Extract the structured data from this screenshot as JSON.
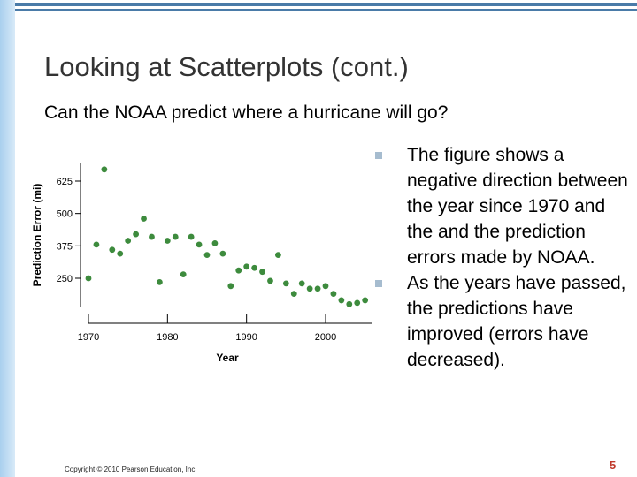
{
  "slide": {
    "title": "Looking at Scatterplots (cont.)",
    "subtitle": "Can the NOAA predict where a hurricane will go?",
    "bullets": [
      "The figure shows a negative direction between the year since 1970 and the and the prediction errors made by NOAA.",
      "As the years have passed, the predictions have improved (errors have decreased)."
    ],
    "copyright": "Copyright © 2010 Pearson Education, Inc.",
    "page_number": "5",
    "colors": {
      "accent": "#4a7ba8",
      "side_bar": "#a9cfee",
      "points": "#3d8b3d",
      "bullet": "#a6bccf",
      "page_number": "#c0392b"
    }
  },
  "chart_data": {
    "type": "scatter",
    "xlabel": "Year",
    "ylabel": "Prediction Error (mi)",
    "xlim": [
      1970,
      2002
    ],
    "ylim": [
      150,
      700
    ],
    "x_ticks": [
      1970,
      1980,
      1990,
      2000
    ],
    "y_ticks": [
      250,
      375,
      500,
      625
    ],
    "points": [
      {
        "x": 1970,
        "y": 250
      },
      {
        "x": 1971,
        "y": 380
      },
      {
        "x": 1972,
        "y": 670
      },
      {
        "x": 1973,
        "y": 360
      },
      {
        "x": 1974,
        "y": 345
      },
      {
        "x": 1975,
        "y": 395
      },
      {
        "x": 1976,
        "y": 420
      },
      {
        "x": 1977,
        "y": 480
      },
      {
        "x": 1978,
        "y": 410
      },
      {
        "x": 1979,
        "y": 235
      },
      {
        "x": 1980,
        "y": 395
      },
      {
        "x": 1981,
        "y": 410
      },
      {
        "x": 1982,
        "y": 265
      },
      {
        "x": 1983,
        "y": 410
      },
      {
        "x": 1984,
        "y": 380
      },
      {
        "x": 1985,
        "y": 340
      },
      {
        "x": 1986,
        "y": 385
      },
      {
        "x": 1987,
        "y": 345
      },
      {
        "x": 1988,
        "y": 220
      },
      {
        "x": 1989,
        "y": 280
      },
      {
        "x": 1990,
        "y": 295
      },
      {
        "x": 1991,
        "y": 290
      },
      {
        "x": 1992,
        "y": 275
      },
      {
        "x": 1993,
        "y": 240
      },
      {
        "x": 1994,
        "y": 340
      },
      {
        "x": 1995,
        "y": 230
      },
      {
        "x": 1996,
        "y": 190
      },
      {
        "x": 1997,
        "y": 230
      },
      {
        "x": 1998,
        "y": 210
      },
      {
        "x": 1999,
        "y": 210
      },
      {
        "x": 2000,
        "y": 220
      },
      {
        "x": 2001,
        "y": 190
      },
      {
        "x": 2002,
        "y": 165
      },
      {
        "x": 2003,
        "y": 150
      },
      {
        "x": 2004,
        "y": 155
      },
      {
        "x": 2005,
        "y": 165
      }
    ],
    "grid": false
  }
}
